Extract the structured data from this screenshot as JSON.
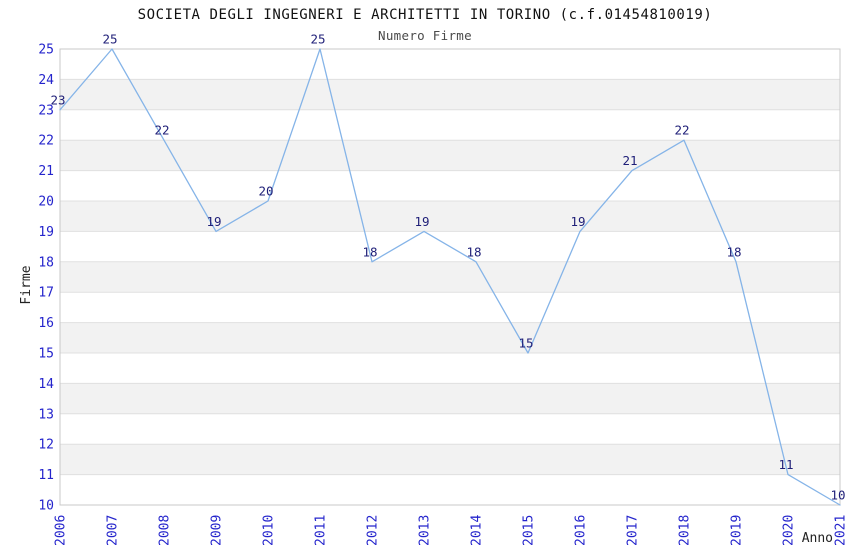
{
  "chart_data": {
    "type": "line",
    "title": "SOCIETA DEGLI INGEGNERI E ARCHITETTI IN TORINO (c.f.01454810019)",
    "subtitle": "Numero Firme",
    "xlabel": "Anno",
    "ylabel": "Firme",
    "x": [
      "2006",
      "2007",
      "2008",
      "2009",
      "2010",
      "2011",
      "2012",
      "2013",
      "2014",
      "2015",
      "2016",
      "2017",
      "2018",
      "2019",
      "2020",
      "2021"
    ],
    "values": [
      23,
      25,
      22,
      19,
      20,
      25,
      18,
      19,
      18,
      15,
      19,
      21,
      22,
      18,
      11,
      10
    ],
    "ylim": [
      10,
      25
    ],
    "ytick_step": 1,
    "grid": "horizontal-striped-bands",
    "legend": false,
    "point_markers": false,
    "data_labels_shown": true,
    "colors": {
      "line": "#85b4e8",
      "tick_label": "#2424cc",
      "data_label": "#1f1f78",
      "band_fill": "#f2f2f2",
      "gridline": "#e0e0e0",
      "plot_border": "#c8c8c8",
      "title": "#111111",
      "subtitle": "#4a4a4a",
      "axis_title": "#222222",
      "background": "#ffffff"
    }
  }
}
